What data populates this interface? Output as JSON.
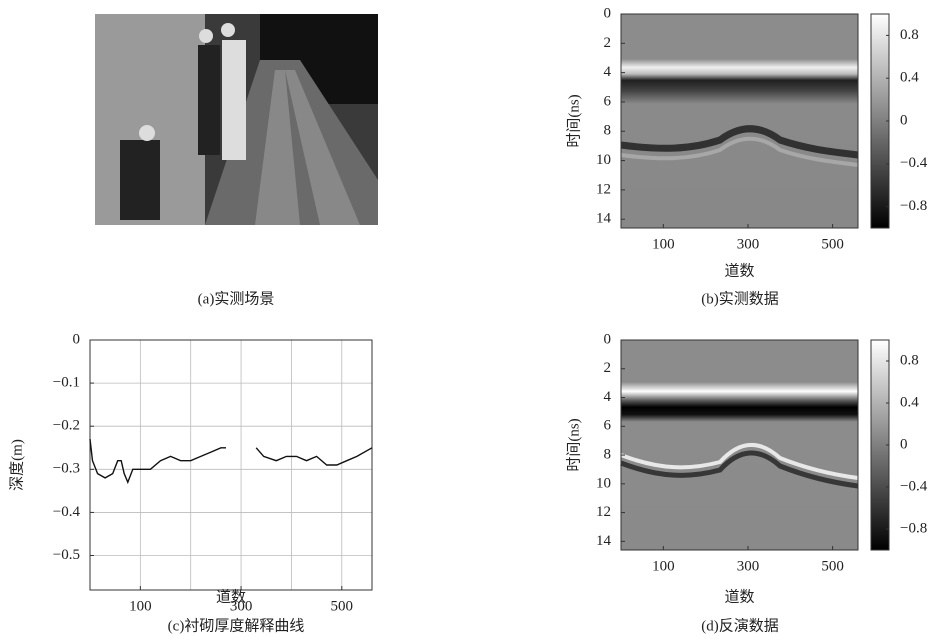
{
  "figure": {
    "panel_a": {
      "caption": "(a)实测场景"
    }
  },
  "chart_data": [
    {
      "type": "heatmap",
      "caption": "(b)实测数据",
      "xlabel": "道数",
      "ylabel": "时间(ns)",
      "xlim": [
        0,
        560
      ],
      "ylim": [
        14.6,
        0
      ],
      "xticks": [
        100,
        300,
        500
      ],
      "yticks": [
        0,
        2,
        4,
        6,
        8,
        10,
        12,
        14
      ],
      "clim": [
        -1,
        1
      ],
      "cticks": [
        0.8,
        0.4,
        0,
        {
          "value": -0.4,
          "label": "−0.4"
        },
        {
          "value": -0.8,
          "label": "−0.8"
        }
      ]
    },
    {
      "type": "line",
      "caption": "(c)衬砌厚度解释曲线",
      "xlabel": "道数",
      "ylabel": "深度(m)",
      "xlim": [
        0,
        560
      ],
      "ylim": [
        -0.58,
        0
      ],
      "xticks": [
        100,
        300,
        500
      ],
      "xgrid": [
        100,
        200,
        300,
        400,
        500
      ],
      "yticks": [
        0,
        {
          "value": -0.1,
          "label": "−0.1"
        },
        {
          "value": -0.2,
          "label": "−0.2"
        },
        {
          "value": -0.3,
          "label": "−0.3"
        },
        {
          "value": -0.4,
          "label": "−0.4"
        },
        {
          "value": -0.5,
          "label": "−0.5"
        }
      ],
      "grid": true,
      "color": "#111",
      "x": [
        0,
        5,
        15,
        30,
        45,
        55,
        62,
        68,
        75,
        85,
        100,
        120,
        140,
        160,
        180,
        200,
        220,
        240,
        260,
        270,
        300,
        330,
        345,
        370,
        390,
        410,
        430,
        450,
        470,
        490,
        510,
        530,
        560
      ],
      "values": [
        -0.23,
        -0.28,
        -0.31,
        -0.32,
        -0.31,
        -0.28,
        -0.28,
        -0.31,
        -0.33,
        -0.3,
        -0.3,
        -0.3,
        -0.28,
        -0.27,
        -0.28,
        -0.28,
        -0.27,
        -0.26,
        -0.25,
        -0.25,
        null,
        -0.25,
        -0.27,
        -0.28,
        -0.27,
        -0.27,
        -0.28,
        -0.27,
        -0.29,
        -0.29,
        -0.28,
        -0.27,
        -0.25
      ]
    },
    {
      "type": "heatmap",
      "caption": "(d)反演数据",
      "xlabel": "道数",
      "ylabel": "时间(ns)",
      "xlim": [
        0,
        560
      ],
      "ylim": [
        14.6,
        0
      ],
      "xticks": [
        100,
        300,
        500
      ],
      "yticks": [
        0,
        2,
        4,
        6,
        8,
        10,
        12,
        14
      ],
      "clim": [
        -1,
        1
      ],
      "cticks": [
        0.8,
        0.4,
        0,
        {
          "value": -0.4,
          "label": "−0.4"
        },
        {
          "value": -0.8,
          "label": "−0.8"
        }
      ]
    }
  ]
}
